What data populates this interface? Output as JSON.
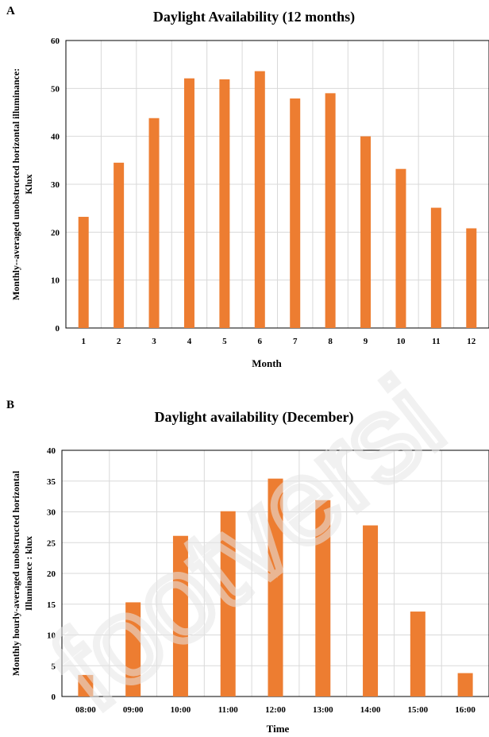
{
  "panels": {
    "a": {
      "letter": "A"
    },
    "b": {
      "letter": "B"
    }
  },
  "watermark": {
    "text": "footversi"
  },
  "colors": {
    "bar": "#ed7d31",
    "grid": "#d9d9d9",
    "watermark": "#e6e6e6"
  },
  "chart_data": [
    {
      "type": "bar",
      "title": "Daylight Availability  (12 months)",
      "xlabel": "Month",
      "ylabel_lines": [
        "Monthly--averaged unobstructed  horizontal illuminance:",
        "Klux"
      ],
      "categories": [
        "1",
        "2",
        "3",
        "4",
        "5",
        "6",
        "7",
        "8",
        "9",
        "10",
        "11",
        "12"
      ],
      "values": [
        23.2,
        34.5,
        43.8,
        52.1,
        51.9,
        53.6,
        47.9,
        49.0,
        40.0,
        33.2,
        25.1,
        20.8
      ],
      "ylim": [
        0,
        60
      ],
      "yticks": [
        0,
        10,
        20,
        30,
        40,
        50,
        60
      ],
      "grid": true
    },
    {
      "type": "bar",
      "title": "Daylight availability  (December)",
      "xlabel": "Time",
      "ylabel_lines": [
        "Monthly hourly-averaged unobstructed horizontal",
        "Illuminance : klux"
      ],
      "categories": [
        "08:00",
        "09:00",
        "10:00",
        "11:00",
        "12:00",
        "13:00",
        "14:00",
        "15:00",
        "16:00"
      ],
      "values": [
        3.5,
        15.3,
        26.1,
        30.1,
        35.4,
        31.9,
        27.8,
        13.8,
        3.8
      ],
      "ylim": [
        0,
        40
      ],
      "yticks": [
        0,
        5,
        10,
        15,
        20,
        25,
        30,
        35,
        40
      ],
      "grid": true
    }
  ]
}
